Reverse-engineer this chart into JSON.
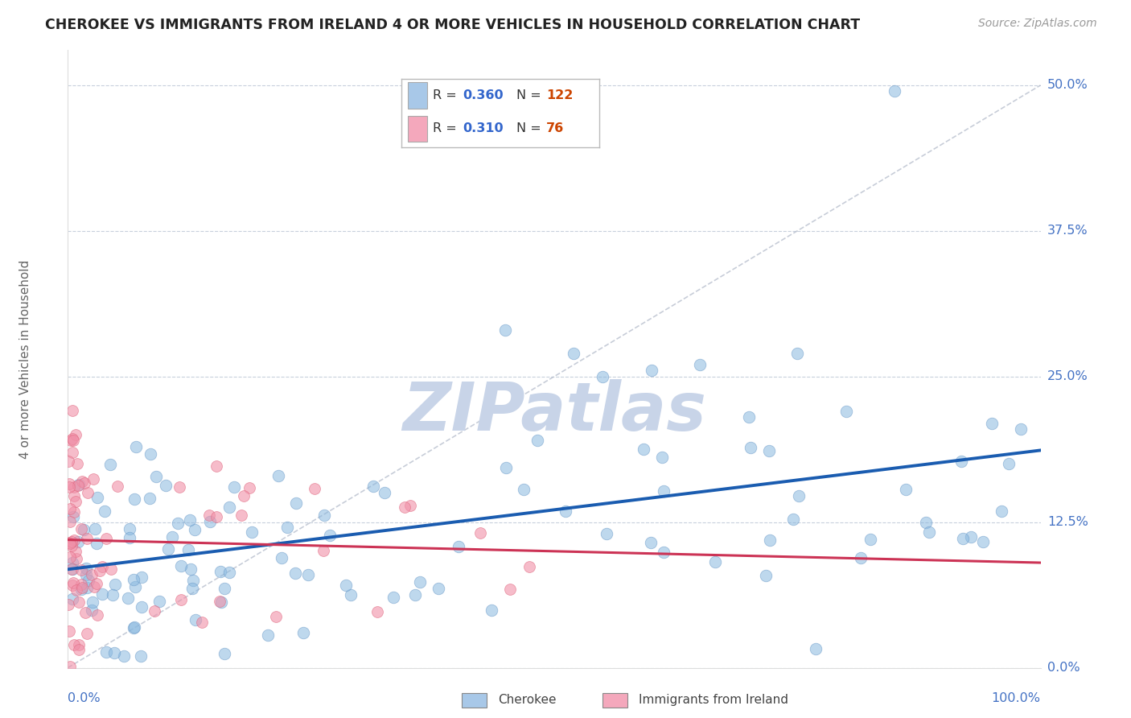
{
  "title": "CHEROKEE VS IMMIGRANTS FROM IRELAND 4 OR MORE VEHICLES IN HOUSEHOLD CORRELATION CHART",
  "source": "Source: ZipAtlas.com",
  "ylabel": "4 or more Vehicles in Household",
  "ytick_vals": [
    0.0,
    12.5,
    25.0,
    37.5,
    50.0
  ],
  "xlim": [
    0.0,
    100.0
  ],
  "ylim": [
    0.0,
    53.0
  ],
  "watermark": "ZIPatlas",
  "watermark_color": "#c8d4e8",
  "background_color": "#ffffff",
  "grid_color": "#c8d0dc",
  "cherokee_color": "#89b8df",
  "cherokee_edge": "#6898c8",
  "ireland_color": "#f090a8",
  "ireland_edge": "#e06880",
  "trend_blue": "#1a5cb0",
  "trend_pink": "#cc3355",
  "diag_color": "#b0b8c8",
  "legend_R_color": "#3366cc",
  "legend_N_color": "#cc4400",
  "legend_blue_patch": "#a8c8e8",
  "legend_pink_patch": "#f4a8bc",
  "axis_label_color": "#4472c4",
  "title_color": "#222222",
  "ylabel_color": "#666666",
  "bottom_legend_color": "#444444"
}
